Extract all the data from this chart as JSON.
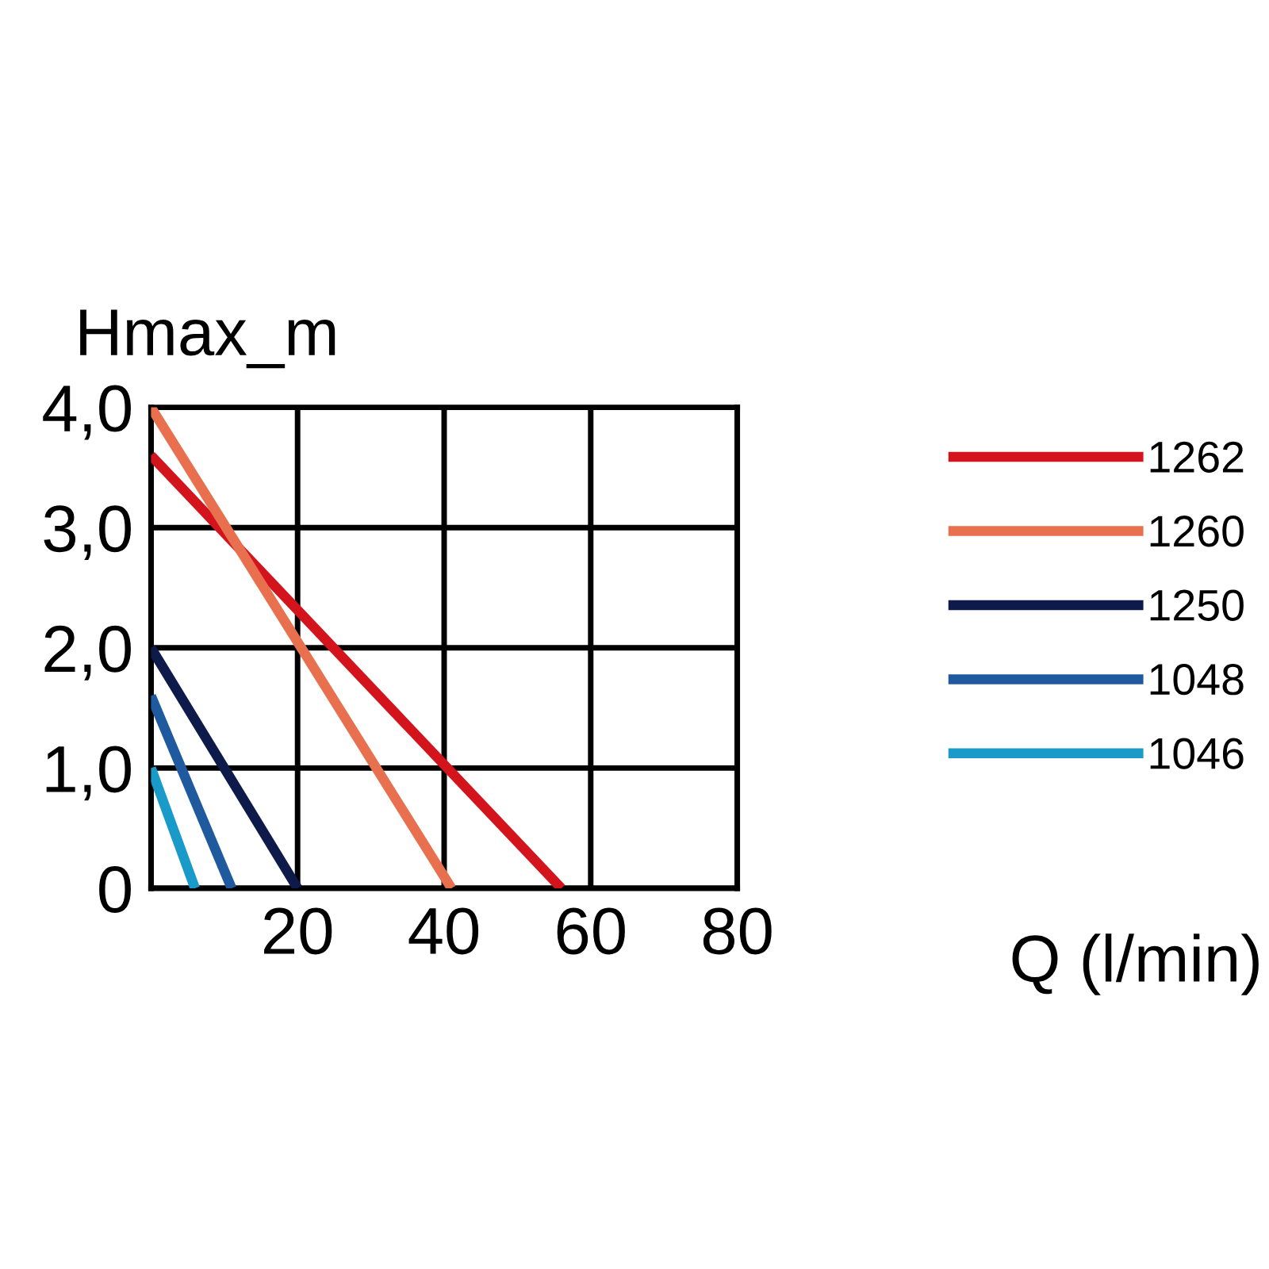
{
  "chart_data": {
    "type": "line",
    "xlabel": "Q (l/min)",
    "ylabel": "Hmax_m",
    "xlim": [
      0,
      80
    ],
    "ylim": [
      0,
      4
    ],
    "xticks": [
      {
        "value": 0,
        "label": null
      },
      20,
      40,
      60,
      80
    ],
    "yticks": [
      {
        "value": 0,
        "label": "0"
      },
      {
        "value": 1,
        "label": "1,0"
      },
      {
        "value": 2,
        "label": "2,0"
      },
      {
        "value": 3,
        "label": "3,0"
      },
      {
        "value": 4,
        "label": "4,0"
      }
    ],
    "grid": true,
    "legend": "right",
    "marker": "none",
    "line_style": "solid",
    "series": [
      {
        "name": "1262",
        "color": "#d4141c",
        "x": [
          0,
          56
        ],
        "values": [
          3.6,
          0
        ]
      },
      {
        "name": "1260",
        "color": "#e8704f",
        "x": [
          0,
          41
        ],
        "values": [
          4.0,
          0
        ]
      },
      {
        "name": "1250",
        "color": "#0d1a4a",
        "x": [
          0,
          20
        ],
        "values": [
          2.0,
          0
        ]
      },
      {
        "name": "1048",
        "color": "#1f5a9e",
        "x": [
          0,
          11
        ],
        "values": [
          1.6,
          0
        ]
      },
      {
        "name": "1046",
        "color": "#1a9ac9",
        "x": [
          0,
          6
        ],
        "values": [
          1.0,
          0
        ]
      }
    ]
  }
}
